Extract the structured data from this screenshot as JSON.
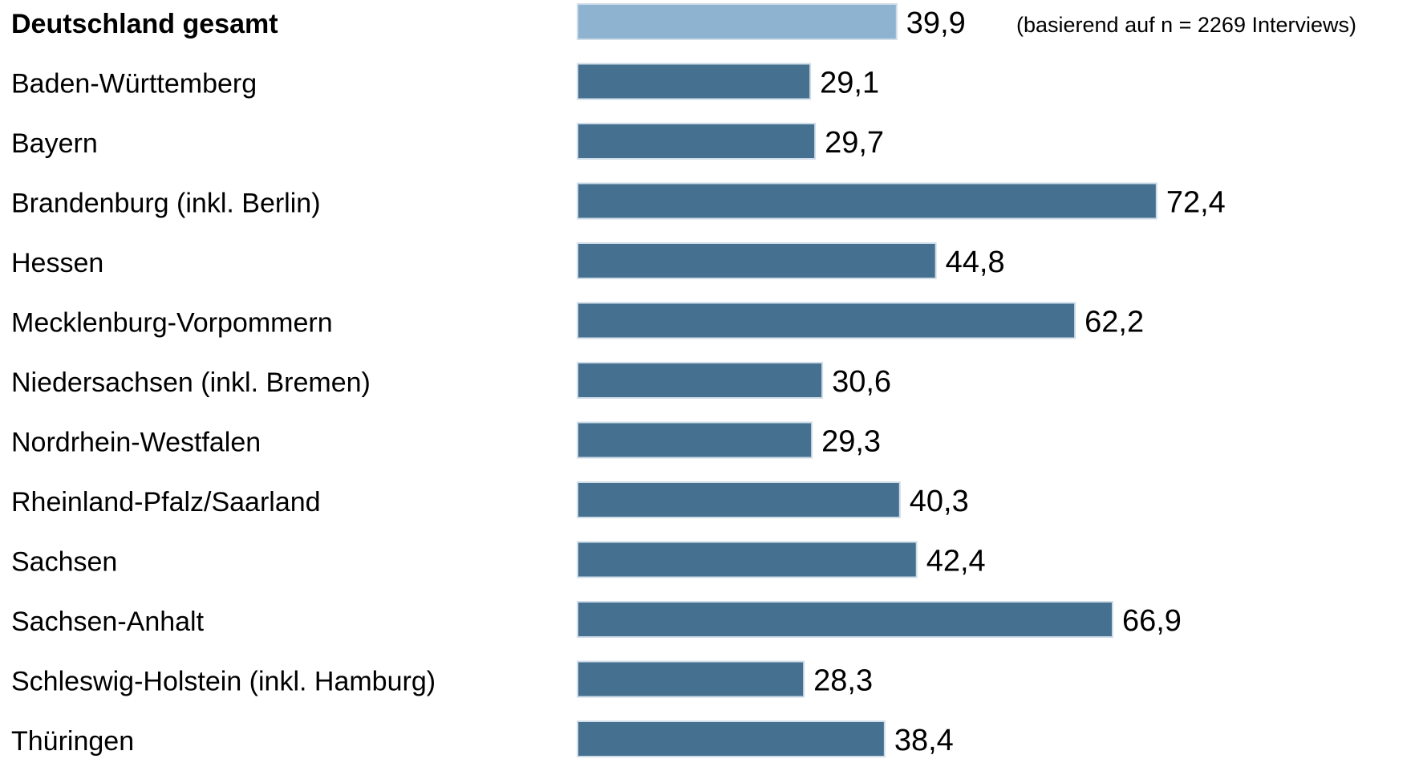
{
  "chart_data": {
    "type": "bar",
    "orientation": "horizontal",
    "categories": [
      "Deutschland gesamt",
      "Baden-Württemberg",
      "Bayern",
      "Brandenburg (inkl. Berlin)",
      "Hessen",
      "Mecklenburg-Vorpommern",
      "Niedersachsen (inkl. Bremen)",
      "Nordrhein-Westfalen",
      "Rheinland-Pfalz/Saarland",
      "Sachsen",
      "Sachsen-Anhalt",
      "Schleswig-Holstein (inkl. Hamburg)",
      "Thüringen"
    ],
    "values": [
      39.9,
      29.1,
      29.7,
      72.4,
      44.8,
      62.2,
      30.6,
      29.3,
      40.3,
      42.4,
      66.9,
      28.3,
      38.4
    ],
    "value_labels": [
      "39,9",
      "29,1",
      "29,7",
      "72,4",
      "44,8",
      "62,2",
      "30,6",
      "29,3",
      "40,3",
      "42,4",
      "66,9",
      "28,3",
      "38,4"
    ],
    "annotation": "(basierend auf n = 2269 Interviews)",
    "highlight_index": 0,
    "colors": {
      "highlight": "#8db3d0",
      "bar": "#46708f",
      "bar_edge": "#cfdde9"
    },
    "xlim": [
      0,
      80
    ],
    "grid": false,
    "legend": "none"
  }
}
